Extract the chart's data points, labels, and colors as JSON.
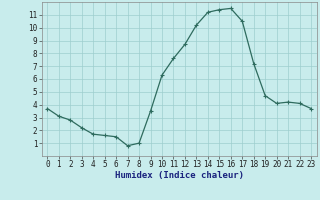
{
  "x": [
    0,
    1,
    2,
    3,
    4,
    5,
    6,
    7,
    8,
    9,
    10,
    11,
    12,
    13,
    14,
    15,
    16,
    17,
    18,
    19,
    20,
    21,
    22,
    23
  ],
  "y": [
    3.7,
    3.1,
    2.8,
    2.2,
    1.7,
    1.6,
    1.5,
    0.8,
    1.0,
    3.5,
    6.3,
    7.6,
    8.7,
    10.2,
    11.2,
    11.4,
    11.5,
    10.5,
    7.2,
    4.7,
    4.1,
    4.2,
    4.1,
    3.7
  ],
  "line_color": "#2e6b5e",
  "marker": "+",
  "marker_color": "#2e6b5e",
  "bg_color": "#c8ecec",
  "grid_color": "#9ecece",
  "xlabel": "Humidex (Indice chaleur)",
  "xlim": [
    -0.5,
    23.5
  ],
  "ylim": [
    0.0,
    12.0
  ],
  "xtick_labels": [
    "0",
    "1",
    "2",
    "3",
    "4",
    "5",
    "6",
    "7",
    "8",
    "9",
    "10",
    "11",
    "12",
    "13",
    "14",
    "15",
    "16",
    "17",
    "18",
    "19",
    "20",
    "21",
    "22",
    "23"
  ],
  "ytick_labels": [
    "1",
    "2",
    "3",
    "4",
    "5",
    "6",
    "7",
    "8",
    "9",
    "10",
    "11"
  ],
  "yticks": [
    1,
    2,
    3,
    4,
    5,
    6,
    7,
    8,
    9,
    10,
    11
  ],
  "tick_fontsize": 5.5,
  "xlabel_fontsize": 6.5,
  "xlabel_color": "#1a237e",
  "line_width": 0.9,
  "marker_size": 3
}
